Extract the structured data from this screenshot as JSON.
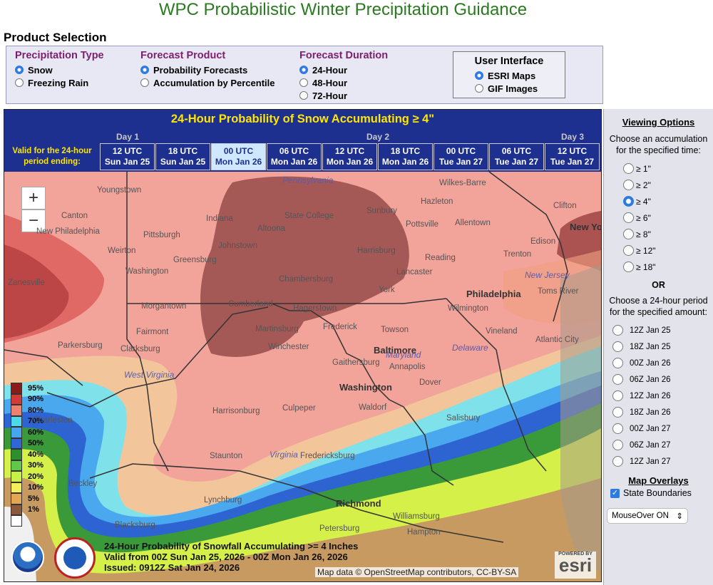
{
  "title": "WPC Probabilistic Winter Precipitation Guidance",
  "product_selection": {
    "heading": "Product Selection",
    "precip_type": {
      "title": "Precipitation Type",
      "options": [
        "Snow",
        "Freezing Rain"
      ],
      "selected": "Snow"
    },
    "forecast_product": {
      "title": "Forecast Product",
      "options": [
        "Probability Forecasts",
        "Accumulation by Percentile"
      ],
      "selected": "Probability Forecasts"
    },
    "forecast_duration": {
      "title": "Forecast Duration",
      "options": [
        "24-Hour",
        "48-Hour",
        "72-Hour"
      ],
      "selected": "24-Hour"
    },
    "user_interface": {
      "title": "User Interface",
      "options": [
        "ESRI Maps",
        "GIF Images"
      ],
      "selected": "ESRI Maps"
    }
  },
  "banner": "24-Hour Probability of Snow Accumulating ≥ 4\"",
  "days": [
    "Day 1",
    "Day 2",
    "Day 3"
  ],
  "valid_label": "Valid for the 24-hour period ending:",
  "time_tabs": [
    {
      "utc": "12 UTC",
      "date": "Sun Jan 25"
    },
    {
      "utc": "18 UTC",
      "date": "Sun Jan 25"
    },
    {
      "utc": "00 UTC",
      "date": "Mon Jan 26"
    },
    {
      "utc": "06 UTC",
      "date": "Mon Jan 26"
    },
    {
      "utc": "12 UTC",
      "date": "Mon Jan 26"
    },
    {
      "utc": "18 UTC",
      "date": "Mon Jan 26"
    },
    {
      "utc": "00 UTC",
      "date": "Tue Jan 27"
    },
    {
      "utc": "06 UTC",
      "date": "Tue Jan 27"
    },
    {
      "utc": "12 UTC",
      "date": "Tue Jan 27"
    }
  ],
  "selected_tab": "00 UTC Mon Jan 26",
  "zoom": {
    "in": "+",
    "out": "−"
  },
  "legend": [
    {
      "label": "95%",
      "color": "#8b1a1a"
    },
    {
      "label": "90%",
      "color": "#d43a3a"
    },
    {
      "label": "80%",
      "color": "#f08070"
    },
    {
      "label": "70%",
      "color": "#4fd8e8"
    },
    {
      "label": "60%",
      "color": "#46a6f0"
    },
    {
      "label": "50%",
      "color": "#2f67d6"
    },
    {
      "label": "40%",
      "color": "#2d8f2d"
    },
    {
      "label": "30%",
      "color": "#5fc84a"
    },
    {
      "label": "20%",
      "color": "#c8f046"
    },
    {
      "label": "10%",
      "color": "#f4ee5a"
    },
    {
      "label": "5%",
      "color": "#e4a652"
    },
    {
      "label": "1%",
      "color": "#8a5a3a"
    },
    {
      "label": "",
      "color": "#ffffff"
    }
  ],
  "map": {
    "cities": [
      "Youngstown",
      "Canton",
      "New Philadelphia",
      "Weirton",
      "Pittsburgh",
      "Indiana",
      "State College",
      "Altoona",
      "Johnstown",
      "Greensburg",
      "Washington",
      "Zanesville",
      "Morgantown",
      "Fairmont",
      "Parkersburg",
      "Clarksburg",
      "Cumberland",
      "Hagerstown",
      "Martinsburg",
      "Winchester",
      "Frederick",
      "Towson",
      "Baltimore",
      "Gaithersburg",
      "Washington",
      "Annapolis",
      "Waldorf",
      "Dover",
      "Harrisonburg",
      "Culpeper",
      "Staunton",
      "Fredericksburg",
      "Lynchburg",
      "Richmond",
      "Blacksburg",
      "Beckley",
      "Charleston",
      "Williamsburg",
      "Hampton",
      "Salisbury",
      "Atlantic City",
      "Vineland",
      "Wilmington",
      "Philadelphia",
      "Harrisburg",
      "Chambersburg",
      "York",
      "Lancaster",
      "Reading",
      "Allentown",
      "Pottsville",
      "Sunbury",
      "Hazleton",
      "Wilkes-Barre",
      "Trenton",
      "Edison",
      "Toms River",
      "New York",
      "Clifton",
      "Petersburg"
    ],
    "states": [
      "Pennsylvania",
      "West Virginia",
      "Virginia",
      "Maryland",
      "Delaware",
      "New Jersey"
    ],
    "caption": [
      "24-Hour Probability of Snowfall Accumulating >= 4 Inches",
      "Valid from 00Z Sun Jan 25, 2026 - 00Z Mon Jan 26, 2026",
      "Issued: 0912Z Sat Jan 24, 2026"
    ],
    "attribution": "Map data © OpenStreetMap contributors, CC-BY-SA",
    "esri_small": "POWERED BY",
    "esri": "esri"
  },
  "viewing": {
    "title": "Viewing Options",
    "accum_prompt": "Choose an accumulation for the specified time:",
    "accum_options": [
      "≥ 1\"",
      "≥ 2\"",
      "≥ 4\"",
      "≥ 6\"",
      "≥ 8\"",
      "≥ 12\"",
      "≥ 18\""
    ],
    "accum_selected": "≥ 4\"",
    "or": "OR",
    "period_prompt": "Choose a 24-hour period for the specified amount:",
    "periods": [
      "12Z Jan 25",
      "18Z Jan 25",
      "00Z Jan 26",
      "06Z Jan 26",
      "12Z Jan 26",
      "18Z Jan 26",
      "00Z Jan 27",
      "06Z Jan 27",
      "12Z Jan 27"
    ],
    "overlays_title": "Map Overlays",
    "state_boundaries": "State Boundaries",
    "mouseover": "MouseOver ON"
  }
}
